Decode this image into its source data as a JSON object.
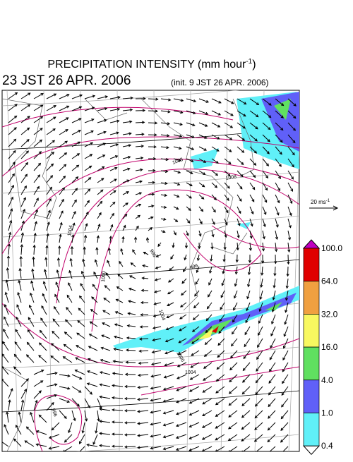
{
  "header": {
    "title": "PRECIPITATION INTENSITY (mm hour",
    "title_exponent": "-1",
    "title_close": ")",
    "valid_time": "23 JST 26 APR. 2006",
    "init_time": "(init. 9 JST 26 APR. 2006)"
  },
  "vector_key": {
    "label": "20 ms",
    "exponent": "-1"
  },
  "colorbar": {
    "levels": [
      {
        "value": 100,
        "label": "100.0"
      },
      {
        "value": 64,
        "label": "64.0"
      },
      {
        "value": 32,
        "label": "32.0"
      },
      {
        "value": 16,
        "label": "16.0"
      },
      {
        "value": 4,
        "label": "4.0"
      },
      {
        "value": 1,
        "label": "1.0"
      },
      {
        "value": 0.4,
        "label": "0.4"
      }
    ],
    "colors": [
      "#e00000",
      "#f0a040",
      "#f8f860",
      "#60e060",
      "#6060f8",
      "#60f0f8"
    ],
    "over_color": "#c000c0",
    "under_color": "#ffffff"
  },
  "contour_labels": [
    "1008",
    "1004",
    "1000",
    "996",
    "996",
    "1004",
    "1000",
    "1004",
    "1008",
    "996"
  ]
}
